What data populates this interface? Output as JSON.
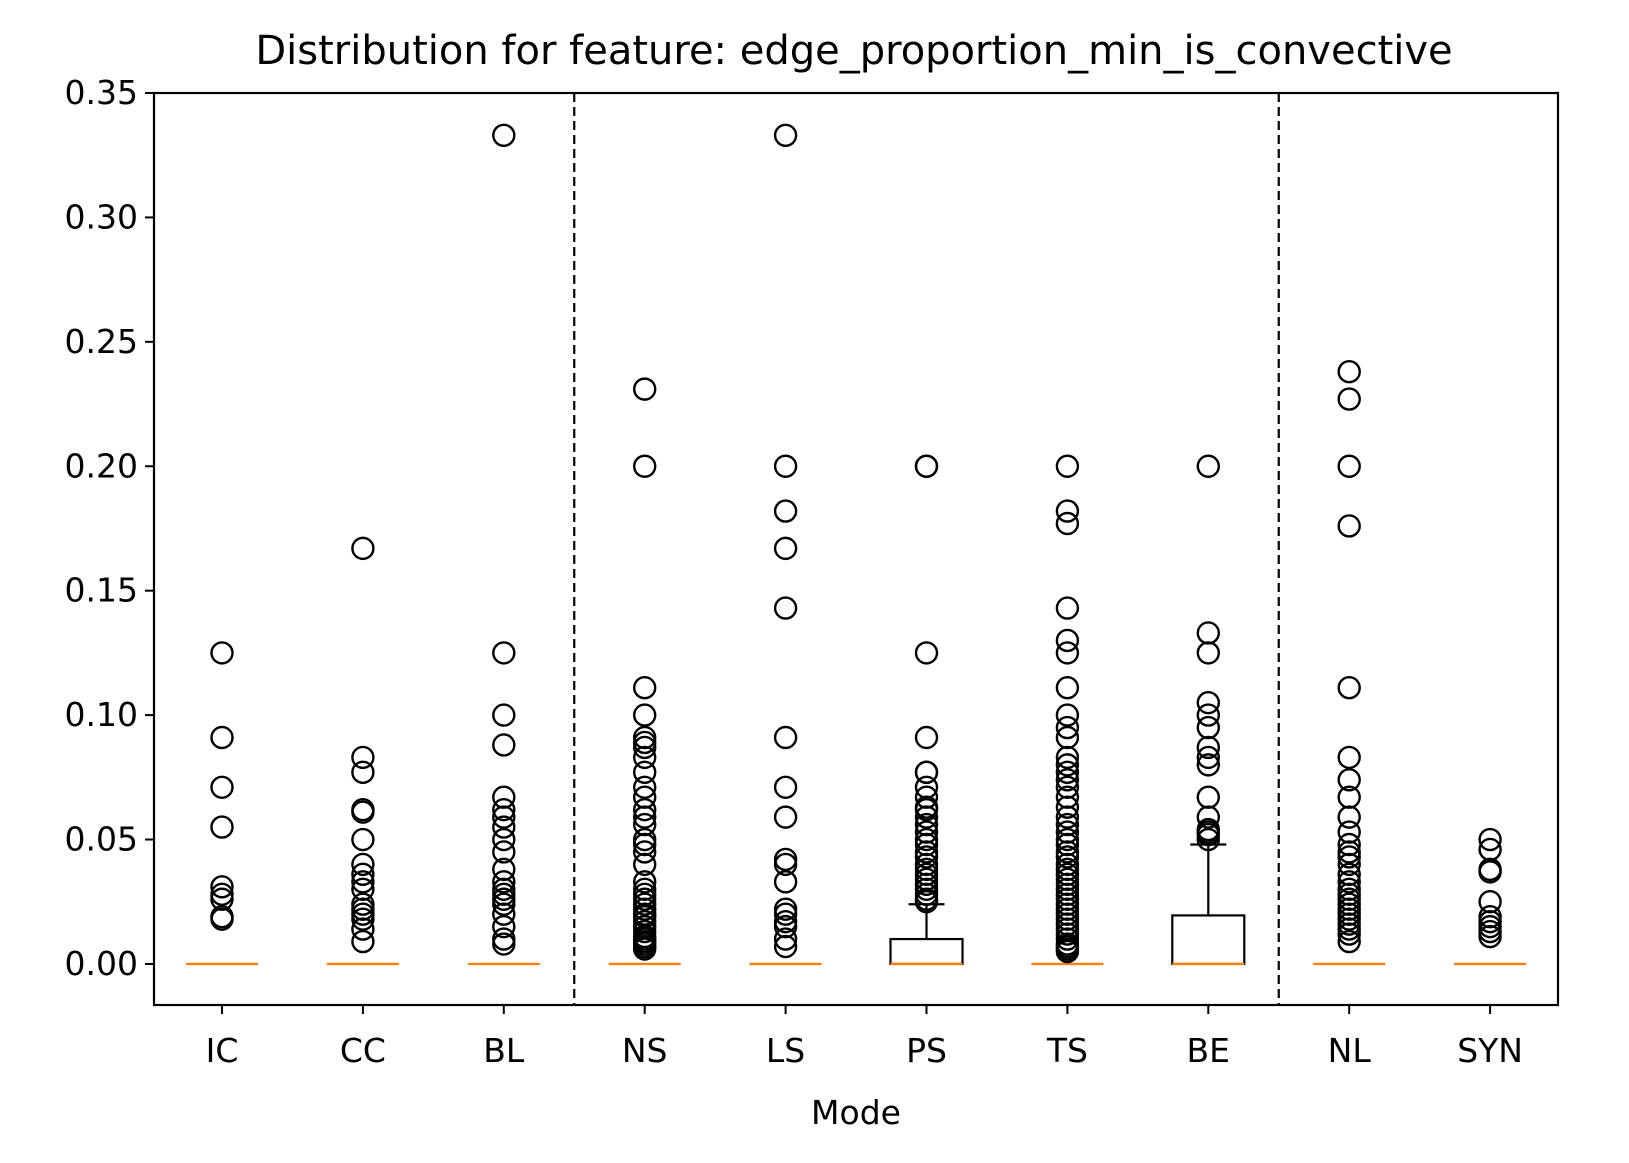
{
  "chart_data": {
    "type": "box",
    "title": "Distribution for feature: edge_proportion_min_is_convective",
    "xlabel": "Mode",
    "ylabel": "",
    "ylim": [
      -0.0165,
      0.35
    ],
    "yticks": [
      "0.00",
      "0.05",
      "0.10",
      "0.15",
      "0.20",
      "0.25",
      "0.30",
      "0.35"
    ],
    "ytick_values": [
      0,
      0.05,
      0.1,
      0.15,
      0.2,
      0.25,
      0.3,
      0.35
    ],
    "categories": [
      "IC",
      "CC",
      "BL",
      "NS",
      "LS",
      "PS",
      "TS",
      "BE",
      "NL",
      "SYN"
    ],
    "group_separators_after": [
      "BL",
      "BE"
    ],
    "grid": false,
    "colors": {
      "box": "#000000",
      "median": "#ff7f0e",
      "separator": "#000000",
      "outlier": "#000000"
    },
    "boxes": [
      {
        "category": "IC",
        "q1": 0,
        "median": 0,
        "q3": 0,
        "whisker_low": 0,
        "whisker_high": 0,
        "outliers": [
          0.125,
          0.091,
          0.071,
          0.055,
          0.031,
          0.028,
          0.026,
          0.019,
          0.018
        ]
      },
      {
        "category": "CC",
        "q1": 0,
        "median": 0,
        "q3": 0,
        "whisker_low": 0,
        "whisker_high": 0,
        "outliers": [
          0.167,
          0.083,
          0.077,
          0.062,
          0.061,
          0.05,
          0.04,
          0.036,
          0.033,
          0.03,
          0.024,
          0.022,
          0.02,
          0.018,
          0.014,
          0.009
        ]
      },
      {
        "category": "BL",
        "q1": 0,
        "median": 0,
        "q3": 0,
        "whisker_low": 0,
        "whisker_high": 0,
        "outliers": [
          0.333,
          0.125,
          0.1,
          0.088,
          0.067,
          0.062,
          0.059,
          0.055,
          0.05,
          0.045,
          0.038,
          0.033,
          0.03,
          0.028,
          0.026,
          0.024,
          0.02,
          0.015,
          0.01,
          0.008
        ]
      },
      {
        "category": "NS",
        "q1": 0,
        "median": 0,
        "q3": 0,
        "whisker_low": 0,
        "whisker_high": 0,
        "outliers": [
          0.231,
          0.2,
          0.111,
          0.1,
          0.091,
          0.089,
          0.087,
          0.083,
          0.077,
          0.071,
          0.067,
          0.062,
          0.059,
          0.056,
          0.05,
          0.048,
          0.045,
          0.04,
          0.033,
          0.03,
          0.028,
          0.026,
          0.024,
          0.022,
          0.02,
          0.019,
          0.017,
          0.015,
          0.013,
          0.011,
          0.01,
          0.009,
          0.008,
          0.007,
          0.006
        ]
      },
      {
        "category": "LS",
        "q1": 0,
        "median": 0,
        "q3": 0,
        "whisker_low": 0,
        "whisker_high": 0,
        "outliers": [
          0.333,
          0.2,
          0.182,
          0.167,
          0.143,
          0.091,
          0.071,
          0.059,
          0.042,
          0.04,
          0.033,
          0.022,
          0.02,
          0.017,
          0.015,
          0.01,
          0.007
        ]
      },
      {
        "category": "PS",
        "q1": 0,
        "median": 0,
        "q3": 0.01,
        "whisker_low": 0,
        "whisker_high": 0.024,
        "outliers": [
          0.2,
          0.2,
          0.125,
          0.091,
          0.077,
          0.077,
          0.071,
          0.067,
          0.063,
          0.062,
          0.059,
          0.056,
          0.053,
          0.05,
          0.048,
          0.045,
          0.043,
          0.04,
          0.038,
          0.036,
          0.034,
          0.032,
          0.03,
          0.028,
          0.026,
          0.025
        ]
      },
      {
        "category": "TS",
        "q1": 0,
        "median": 0,
        "q3": 0,
        "whisker_low": 0,
        "whisker_high": 0,
        "outliers": [
          0.2,
          0.182,
          0.177,
          0.143,
          0.13,
          0.125,
          0.111,
          0.1,
          0.095,
          0.091,
          0.083,
          0.08,
          0.077,
          0.074,
          0.071,
          0.067,
          0.063,
          0.059,
          0.056,
          0.053,
          0.05,
          0.048,
          0.045,
          0.043,
          0.04,
          0.038,
          0.036,
          0.034,
          0.032,
          0.03,
          0.028,
          0.026,
          0.024,
          0.022,
          0.02,
          0.018,
          0.016,
          0.014,
          0.012,
          0.01,
          0.008,
          0.007,
          0.006,
          0.005
        ]
      },
      {
        "category": "BE",
        "q1": 0,
        "median": 0,
        "q3": 0.0195,
        "whisker_low": 0,
        "whisker_high": 0.048,
        "outliers": [
          0.2,
          0.133,
          0.125,
          0.105,
          0.1,
          0.095,
          0.087,
          0.083,
          0.08,
          0.067,
          0.059,
          0.054,
          0.053,
          0.052,
          0.05
        ]
      },
      {
        "category": "NL",
        "q1": 0,
        "median": 0,
        "q3": 0,
        "whisker_low": 0,
        "whisker_high": 0,
        "outliers": [
          0.238,
          0.227,
          0.2,
          0.176,
          0.111,
          0.083,
          0.074,
          0.067,
          0.059,
          0.053,
          0.048,
          0.045,
          0.043,
          0.04,
          0.036,
          0.033,
          0.03,
          0.028,
          0.026,
          0.024,
          0.022,
          0.02,
          0.018,
          0.016,
          0.014,
          0.012,
          0.009
        ]
      },
      {
        "category": "SYN",
        "q1": 0,
        "median": 0,
        "q3": 0,
        "whisker_low": 0,
        "whisker_high": 0,
        "outliers": [
          0.05,
          0.046,
          0.038,
          0.037,
          0.025,
          0.019,
          0.017,
          0.015,
          0.013,
          0.011
        ]
      }
    ]
  }
}
